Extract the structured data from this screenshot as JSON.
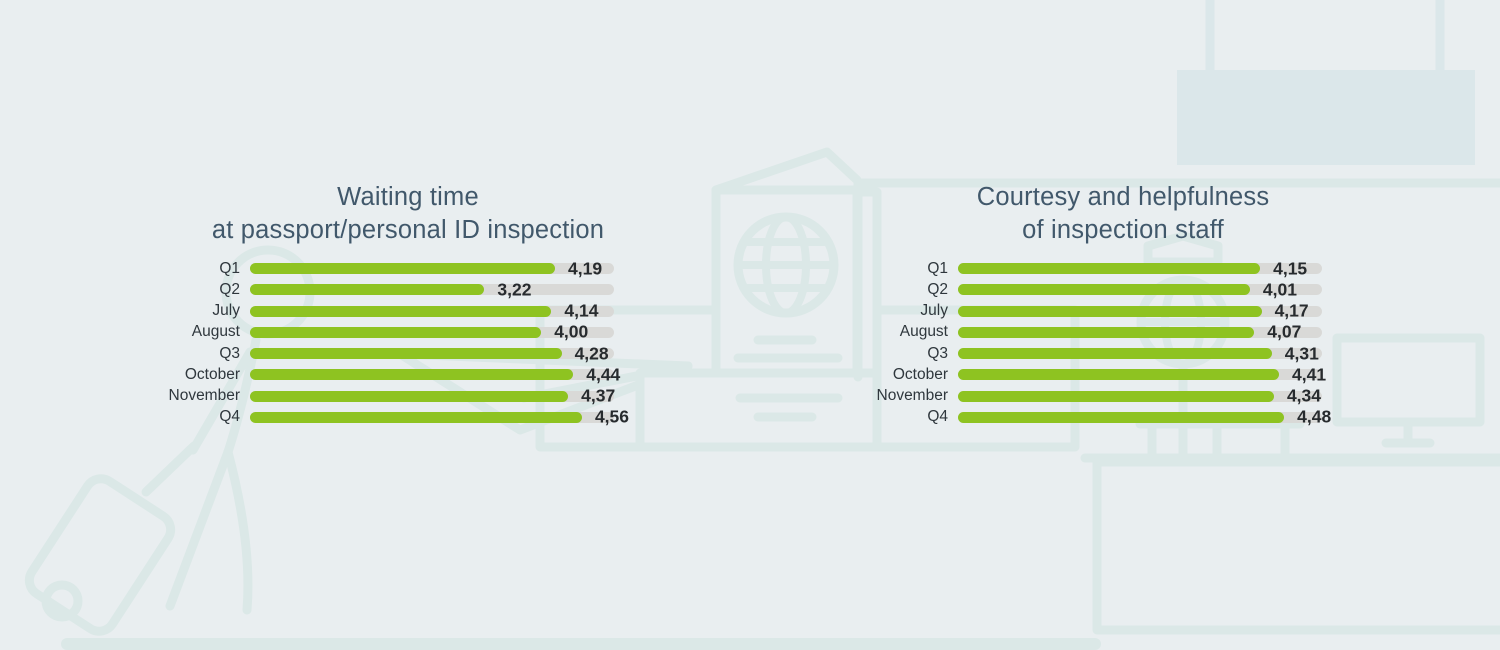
{
  "background": {
    "color": "#e9eef0",
    "illustration_stroke": "#dbe8e7",
    "sign_fill": "#dbe7ea",
    "icons": [
      "traveler-with-suitcase-icon",
      "passport-icon",
      "airplane-icon",
      "counter-icon",
      "info-kiosk-icon",
      "signboard",
      "monitor-icon",
      "desk-icon"
    ]
  },
  "scale_max": 5,
  "chart_data": [
    {
      "type": "bar",
      "orientation": "horizontal",
      "title": "Waiting time at passport/personal ID inspection",
      "title_lines": [
        "Waiting time",
        "at passport/personal ID inspection"
      ],
      "categories": [
        "Q1",
        "Q2",
        "July",
        "August",
        "Q3",
        "October",
        "November",
        "Q4"
      ],
      "values": [
        4.19,
        3.22,
        4.14,
        4.0,
        4.28,
        4.44,
        4.37,
        4.56
      ],
      "value_labels": [
        "4,19",
        "3,22",
        "4,14",
        "4,00",
        "4,28",
        "4,44",
        "4,37",
        "4,56"
      ],
      "xlim": [
        0,
        5
      ],
      "grid": false,
      "legend": false,
      "bar_color": "#8ec321",
      "track_color": "#d9d9d7",
      "value_decimal_separator": ","
    },
    {
      "type": "bar",
      "orientation": "horizontal",
      "title": "Courtesy and helpfulness of inspection staff",
      "title_lines": [
        "Courtesy and helpfulness",
        "of inspection staff"
      ],
      "categories": [
        "Q1",
        "Q2",
        "July",
        "August",
        "Q3",
        "October",
        "November",
        "Q4"
      ],
      "values": [
        4.15,
        4.01,
        4.17,
        4.07,
        4.31,
        4.41,
        4.34,
        4.48
      ],
      "value_labels": [
        "4,15",
        "4,01",
        "4,17",
        "4,07",
        "4,31",
        "4,41",
        "4,34",
        "4,48"
      ],
      "xlim": [
        0,
        5
      ],
      "grid": false,
      "legend": false,
      "bar_color": "#8ec321",
      "track_color": "#d9d9d7",
      "value_decimal_separator": ","
    }
  ]
}
